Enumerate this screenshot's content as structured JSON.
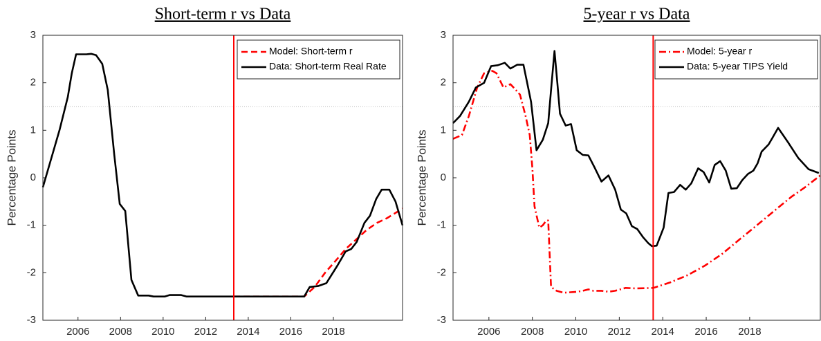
{
  "chart_data": [
    {
      "type": "line",
      "title": "Short-term r vs Data",
      "ylabel": "Percentage Points",
      "xlim": [
        2004.35,
        2021.25
      ],
      "xticks": [
        2006,
        2008,
        2010,
        2012,
        2014,
        2016,
        2018
      ],
      "ylim": [
        -3,
        3
      ],
      "yticks": [
        -3,
        -2,
        -1,
        0,
        1,
        2,
        3
      ],
      "hline": 1.5,
      "vline": 2013.32,
      "vline_color": "#ff0000",
      "legend": "upper right",
      "series": [
        {
          "name": "Model: Short-term r",
          "color": "#ff0000",
          "line_style": "dashed",
          "x": [
            2013.32,
            2016.63,
            2017.12,
            2017.61,
            2018.1,
            2018.58,
            2019.07,
            2019.56,
            2020.05,
            2020.52,
            2021.25
          ],
          "values": [
            -2.5,
            -2.5,
            -2.3,
            -2.0,
            -1.75,
            -1.5,
            -1.3,
            -1.1,
            -0.95,
            -0.85,
            -0.65
          ]
        },
        {
          "name": "Data: Short-term Real Rate",
          "color": "#000000",
          "line_style": "solid",
          "x": [
            2004.35,
            2005.13,
            2005.52,
            2005.71,
            2005.91,
            2006.4,
            2006.62,
            2006.85,
            2007.14,
            2007.4,
            2007.7,
            2007.96,
            2008.22,
            2008.51,
            2008.83,
            2009.32,
            2009.55,
            2010.07,
            2010.3,
            2010.85,
            2011.11,
            2016.63,
            2016.89,
            2017.28,
            2017.67,
            2018.19,
            2018.58,
            2018.84,
            2019.1,
            2019.46,
            2019.72,
            2020.01,
            2020.27,
            2020.63,
            2020.92,
            2021.25
          ],
          "values": [
            -0.2,
            1.0,
            1.7,
            2.2,
            2.6,
            2.6,
            2.61,
            2.58,
            2.4,
            1.85,
            0.5,
            -0.55,
            -0.7,
            -2.15,
            -2.48,
            -2.48,
            -2.5,
            -2.5,
            -2.47,
            -2.47,
            -2.5,
            -2.5,
            -2.3,
            -2.28,
            -2.22,
            -1.85,
            -1.55,
            -1.5,
            -1.35,
            -0.95,
            -0.8,
            -0.45,
            -0.25,
            -0.25,
            -0.5,
            -1.0
          ]
        }
      ]
    },
    {
      "type": "line",
      "title": "5-year r vs Data",
      "ylabel": "Percentage Points",
      "xlim": [
        2004.35,
        2021.25
      ],
      "xticks": [
        2006,
        2008,
        2010,
        2012,
        2014,
        2016,
        2018
      ],
      "ylim": [
        -3,
        3
      ],
      "yticks": [
        -3,
        -2,
        -1,
        0,
        1,
        2,
        3
      ],
      "hline": 1.5,
      "vline": 2013.56,
      "vline_color": "#ff0000",
      "legend": "upper right",
      "series": [
        {
          "name": "Model: 5-year r",
          "color": "#ff0000",
          "line_style": "dashdot",
          "x": [
            2004.35,
            2004.76,
            2005.08,
            2005.46,
            2005.78,
            2006.16,
            2006.35,
            2006.67,
            2006.99,
            2007.24,
            2007.43,
            2007.69,
            2007.88,
            2008.0,
            2008.1,
            2008.32,
            2008.48,
            2008.64,
            2008.73,
            2008.86,
            2009.11,
            2009.43,
            2010.07,
            2010.32,
            2010.58,
            2010.8,
            2011.18,
            2011.5,
            2011.81,
            2012.29,
            2012.77,
            2013.56,
            2014.36,
            2015.15,
            2015.94,
            2016.74,
            2017.53,
            2018.33,
            2019.12,
            2019.92,
            2020.55,
            2021.25
          ],
          "values": [
            0.82,
            0.9,
            1.3,
            1.9,
            2.2,
            2.25,
            2.2,
            1.9,
            1.97,
            1.85,
            1.75,
            1.3,
            0.9,
            0.2,
            -0.6,
            -1.05,
            -1.0,
            -0.9,
            -0.9,
            -2.3,
            -2.38,
            -2.42,
            -2.4,
            -2.38,
            -2.35,
            -2.38,
            -2.38,
            -2.4,
            -2.38,
            -2.32,
            -2.33,
            -2.32,
            -2.2,
            -2.05,
            -1.85,
            -1.6,
            -1.3,
            -1.0,
            -0.7,
            -0.4,
            -0.2,
            0.05
          ]
        },
        {
          "name": "Data: 5-year TIPS Yield",
          "color": "#000000",
          "line_style": "solid",
          "x": [
            2004.35,
            2004.67,
            2005.08,
            2005.4,
            2005.78,
            2006.1,
            2006.41,
            2006.73,
            2006.99,
            2007.3,
            2007.59,
            2007.94,
            2008.19,
            2008.48,
            2008.73,
            2008.89,
            2009.02,
            2009.15,
            2009.27,
            2009.53,
            2009.78,
            2010.04,
            2010.32,
            2010.58,
            2010.86,
            2011.18,
            2011.5,
            2011.81,
            2012.07,
            2012.32,
            2012.58,
            2012.83,
            2013.09,
            2013.34,
            2013.5,
            2013.72,
            2014.04,
            2014.26,
            2014.52,
            2014.8,
            2015.06,
            2015.31,
            2015.63,
            2015.88,
            2016.14,
            2016.39,
            2016.64,
            2016.9,
            2017.15,
            2017.41,
            2017.66,
            2017.92,
            2018.17,
            2018.36,
            2018.55,
            2018.87,
            2019.06,
            2019.31,
            2019.76,
            2020.23,
            2020.71,
            2021.18
          ],
          "values": [
            1.15,
            1.3,
            1.6,
            1.9,
            2.0,
            2.35,
            2.37,
            2.42,
            2.3,
            2.38,
            2.38,
            1.6,
            0.58,
            0.8,
            1.15,
            2.0,
            2.67,
            2.0,
            1.35,
            1.1,
            1.13,
            0.58,
            0.48,
            0.47,
            0.22,
            -0.08,
            0.05,
            -0.25,
            -0.67,
            -0.75,
            -1.02,
            -1.08,
            -1.25,
            -1.38,
            -1.44,
            -1.43,
            -1.05,
            -0.32,
            -0.3,
            -0.15,
            -0.25,
            -0.12,
            0.2,
            0.12,
            -0.1,
            0.27,
            0.35,
            0.15,
            -0.23,
            -0.22,
            -0.05,
            0.08,
            0.15,
            0.3,
            0.55,
            0.7,
            0.85,
            1.05,
            0.75,
            0.42,
            0.18,
            0.1
          ]
        }
      ]
    }
  ]
}
